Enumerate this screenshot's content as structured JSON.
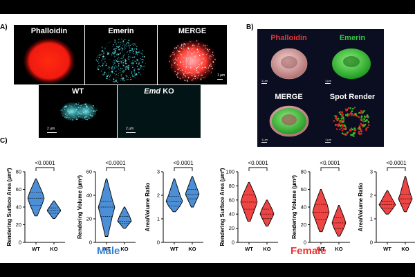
{
  "panel_a": {
    "letter": "A)",
    "tiles": [
      {
        "label": "Phalloidin"
      },
      {
        "label": "Emerin"
      },
      {
        "label": "MERGE",
        "scalebar": "1 µm"
      },
      {
        "label": "WT",
        "scalebar": "2 µm"
      },
      {
        "label_italic": "Emd",
        "label_rest": " KO",
        "scalebar": "2 µm"
      }
    ]
  },
  "panel_b": {
    "letter": "B)",
    "tiles": [
      {
        "label": "Phalloidin",
        "color": "#e53935",
        "scalebar": "1 µm"
      },
      {
        "label": "Emerin",
        "color": "#2ecc40",
        "scalebar": "1 µm"
      },
      {
        "label": "MERGE",
        "color": "#ffffff",
        "scalebar": "1 µm"
      },
      {
        "label": "Spot Render",
        "color": "#ffffff",
        "scalebar": "1 µm"
      }
    ]
  },
  "panel_c": {
    "letter": "C)",
    "sex_labels": {
      "male": "Male",
      "female": "Female"
    },
    "colors": {
      "male": "#4d8fd6",
      "female": "#ee4444",
      "male_label": "#2f7fd0",
      "female_label": "#ee3333"
    }
  },
  "chart_data": [
    {
      "type": "violin",
      "group": "Male",
      "ylabel": "Rendering Surface Area (µm²)",
      "categories": [
        "WT",
        "KO"
      ],
      "ylim": [
        0,
        80
      ],
      "yticks": [
        0,
        20,
        40,
        60,
        80
      ],
      "p_value": "<0.0001",
      "series": [
        {
          "category": "WT",
          "min": 30,
          "q1": 42,
          "median": 50,
          "q3": 57,
          "max": 72
        },
        {
          "category": "KO",
          "min": 27,
          "q1": 33,
          "median": 36,
          "q3": 39,
          "max": 47
        }
      ]
    },
    {
      "type": "violin",
      "group": "Male",
      "ylabel": "Rendering Volume (µm³)",
      "categories": [
        "WT",
        "KO"
      ],
      "ylim": [
        0,
        60
      ],
      "yticks": [
        0,
        20,
        40,
        60
      ],
      "p_value": "<0.0001",
      "series": [
        {
          "category": "WT",
          "min": 5,
          "q1": 22,
          "median": 30,
          "q3": 35,
          "max": 54
        },
        {
          "category": "KO",
          "min": 12,
          "q1": 16,
          "median": 18,
          "q3": 22,
          "max": 30
        }
      ]
    },
    {
      "type": "violin",
      "group": "Male",
      "ylabel": "Area/Volume Ratio",
      "categories": [
        "WT",
        "KO"
      ],
      "ylim": [
        0,
        3
      ],
      "yticks": [
        0,
        1,
        2,
        3
      ],
      "p_value": "<0.0001",
      "series": [
        {
          "category": "WT",
          "min": 1.3,
          "q1": 1.55,
          "median": 1.75,
          "q3": 1.95,
          "max": 2.7
        },
        {
          "category": "KO",
          "min": 1.5,
          "q1": 1.85,
          "median": 2.05,
          "q3": 2.25,
          "max": 2.8
        }
      ]
    },
    {
      "type": "violin",
      "group": "Female",
      "ylabel": "Rendering Surface Area (µm²)",
      "categories": [
        "WT",
        "KO"
      ],
      "ylim": [
        0,
        100
      ],
      "yticks": [
        0,
        20,
        40,
        60,
        80,
        100
      ],
      "p_value": "<0.0001",
      "series": [
        {
          "category": "WT",
          "min": 30,
          "q1": 47,
          "median": 57,
          "q3": 67,
          "max": 85
        },
        {
          "category": "KO",
          "min": 23,
          "q1": 34,
          "median": 40,
          "q3": 47,
          "max": 60
        }
      ]
    },
    {
      "type": "violin",
      "group": "Female",
      "ylabel": "Rendering Volume (µm³)",
      "categories": [
        "WT",
        "KO"
      ],
      "ylim": [
        0,
        80
      ],
      "yticks": [
        0,
        20,
        40,
        60,
        80
      ],
      "p_value": "<0.0001",
      "series": [
        {
          "category": "WT",
          "min": 12,
          "q1": 26,
          "median": 34,
          "q3": 43,
          "max": 60
        },
        {
          "category": "KO",
          "min": 7,
          "q1": 16,
          "median": 22,
          "q3": 28,
          "max": 42
        }
      ]
    },
    {
      "type": "violin",
      "group": "Female",
      "ylabel": "Area/Volume Ratio",
      "categories": [
        "WT",
        "KO"
      ],
      "ylim": [
        0,
        3
      ],
      "yticks": [
        0,
        1,
        2,
        3
      ],
      "p_value": "<0.0001",
      "series": [
        {
          "category": "WT",
          "min": 1.2,
          "q1": 1.45,
          "median": 1.6,
          "q3": 1.75,
          "max": 2.2
        },
        {
          "category": "KO",
          "min": 1.3,
          "q1": 1.65,
          "median": 1.85,
          "q3": 2.05,
          "max": 2.8
        }
      ]
    }
  ]
}
